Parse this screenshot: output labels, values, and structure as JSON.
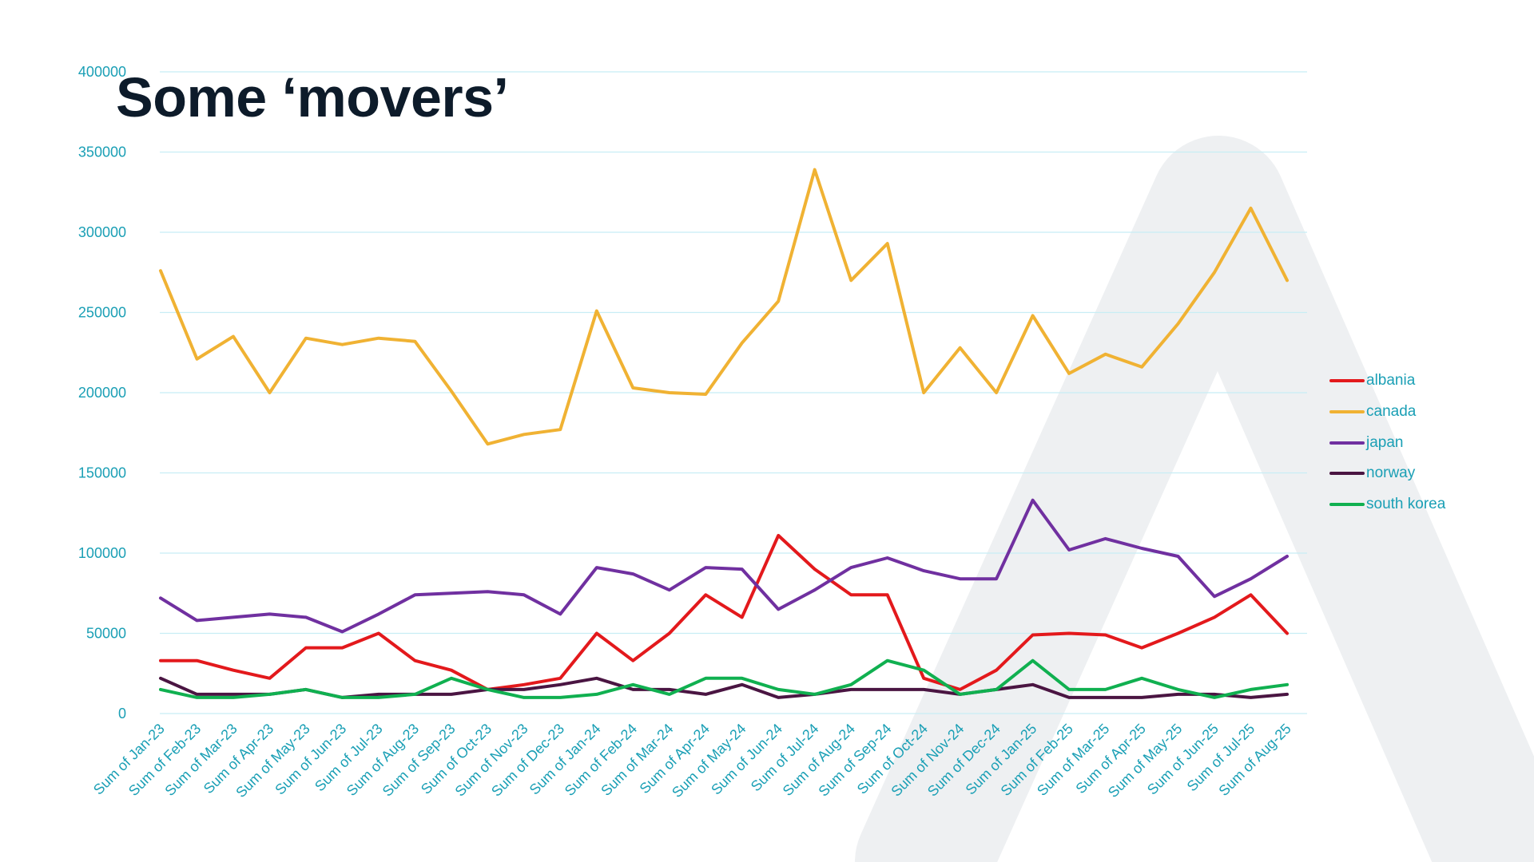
{
  "slide": {
    "title": "Some ‘movers’"
  },
  "colors": {
    "axis_text": "#1a9fb5",
    "grid": "#c8edf5",
    "title": "#0d1b2a",
    "watermark": "#eef0f2"
  },
  "chart_data": {
    "type": "line",
    "title": "",
    "xlabel": "",
    "ylabel": "",
    "ylim": [
      0,
      400000
    ],
    "yticks": [
      0,
      50000,
      100000,
      150000,
      200000,
      250000,
      300000,
      350000,
      400000
    ],
    "grid": true,
    "legend_position": "right",
    "categories": [
      "Sum of Jan-23",
      "Sum of Feb-23",
      "Sum of Mar-23",
      "Sum of Apr-23",
      "Sum of May-23",
      "Sum of Jun-23",
      "Sum of Jul-23",
      "Sum of Aug-23",
      "Sum of Sep-23",
      "Sum of Oct-23",
      "Sum of Nov-23",
      "Sum of Dec-23",
      "Sum of Jan-24",
      "Sum of Feb-24",
      "Sum of Mar-24",
      "Sum of Apr-24",
      "Sum of May-24",
      "Sum of Jun-24",
      "Sum of Jul-24",
      "Sum of Aug-24",
      "Sum of Sep-24",
      "Sum of Oct-24",
      "Sum of Nov-24",
      "Sum of Dec-24",
      "Sum of Jan-25",
      "Sum of Feb-25",
      "Sum of Mar-25",
      "Sum of Apr-25",
      "Sum of May-25",
      "Sum of Jun-25",
      "Sum of Jul-25",
      "Sum of Aug-25"
    ],
    "series": [
      {
        "name": "albania",
        "color": "#e3191c",
        "values": [
          33000,
          33000,
          27000,
          22000,
          41000,
          41000,
          50000,
          33000,
          27000,
          15000,
          18000,
          22000,
          50000,
          33000,
          50000,
          74000,
          60000,
          111000,
          90000,
          74000,
          74000,
          22000,
          15000,
          27000,
          49000,
          50000,
          49000,
          41000,
          50000,
          60000,
          74000,
          50000
        ]
      },
      {
        "name": "canada",
        "color": "#f0b233",
        "values": [
          276000,
          221000,
          235000,
          200000,
          234000,
          230000,
          234000,
          232000,
          201000,
          168000,
          174000,
          177000,
          251000,
          203000,
          200000,
          199000,
          231000,
          257000,
          339000,
          270000,
          293000,
          200000,
          228000,
          200000,
          248000,
          212000,
          224000,
          216000,
          243000,
          275000,
          315000,
          270000
        ]
      },
      {
        "name": "japan",
        "color": "#7030a0",
        "values": [
          72000,
          58000,
          60000,
          62000,
          60000,
          51000,
          62000,
          74000,
          75000,
          76000,
          74000,
          62000,
          91000,
          87000,
          77000,
          91000,
          90000,
          65000,
          77000,
          91000,
          97000,
          89000,
          84000,
          84000,
          133000,
          102000,
          109000,
          103000,
          98000,
          73000,
          84000,
          98000
        ]
      },
      {
        "name": "norway",
        "color": "#4a1542",
        "values": [
          22000,
          12000,
          12000,
          12000,
          15000,
          10000,
          12000,
          12000,
          12000,
          15000,
          15000,
          18000,
          22000,
          15000,
          15000,
          12000,
          18000,
          10000,
          12000,
          15000,
          15000,
          15000,
          12000,
          15000,
          18000,
          10000,
          10000,
          10000,
          12000,
          12000,
          10000,
          12000
        ]
      },
      {
        "name": "south korea",
        "color": "#10b050",
        "values": [
          15000,
          10000,
          10000,
          12000,
          15000,
          10000,
          10000,
          12000,
          22000,
          15000,
          10000,
          10000,
          12000,
          18000,
          12000,
          22000,
          22000,
          15000,
          12000,
          18000,
          33000,
          27000,
          12000,
          15000,
          33000,
          15000,
          15000,
          22000,
          15000,
          10000,
          15000,
          18000
        ]
      }
    ]
  }
}
